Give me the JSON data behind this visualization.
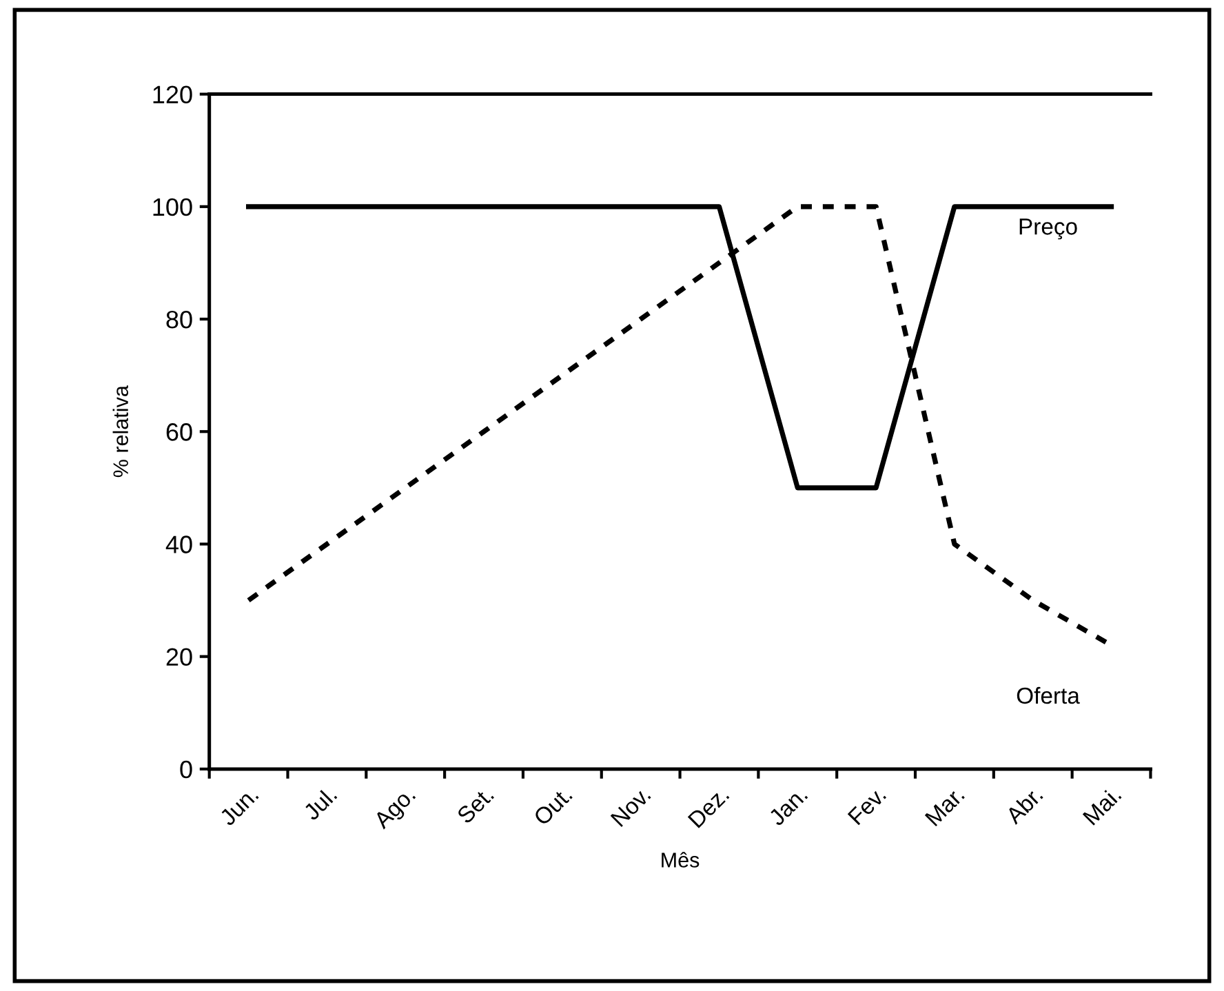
{
  "chart_data": {
    "type": "line",
    "xlabel": "Mês",
    "ylabel": "% relativa",
    "categories": [
      "Jun.",
      "Jul.",
      "Ago.",
      "Set.",
      "Out.",
      "Nov.",
      "Dez.",
      "Jan.",
      "Fev.",
      "Mar.",
      "Abr.",
      "Mai."
    ],
    "series": [
      {
        "name": "Preço",
        "color": "#000000",
        "line_style": "solid",
        "values": [
          100,
          100,
          100,
          100,
          100,
          100,
          100,
          50,
          50,
          100,
          100,
          100
        ]
      },
      {
        "name": "Oferta",
        "color": "#000000",
        "line_style": "dashed",
        "values": [
          30,
          40,
          50,
          60,
          70,
          80,
          90,
          100,
          100,
          40,
          30,
          22
        ]
      }
    ],
    "ylim": [
      0,
      120
    ],
    "yticks": [
      0,
      20,
      40,
      60,
      80,
      100,
      120
    ],
    "grid": false,
    "legend": false,
    "marker": "none"
  }
}
